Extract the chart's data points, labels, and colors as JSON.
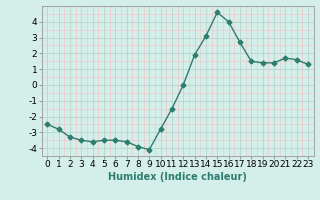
{
  "x": [
    0,
    1,
    2,
    3,
    4,
    5,
    6,
    7,
    8,
    9,
    10,
    11,
    12,
    13,
    14,
    15,
    16,
    17,
    18,
    19,
    20,
    21,
    22,
    23
  ],
  "y": [
    -2.5,
    -2.8,
    -3.3,
    -3.5,
    -3.6,
    -3.5,
    -3.5,
    -3.6,
    -3.9,
    -4.1,
    -2.8,
    -1.5,
    0.0,
    1.9,
    3.1,
    4.6,
    4.0,
    2.7,
    1.5,
    1.4,
    1.4,
    1.7,
    1.6,
    1.3
  ],
  "line_color": "#2e7d6e",
  "marker": "D",
  "marker_size": 2.5,
  "bg_color": "#d4efea",
  "grid_color_major": "#b8d4cf",
  "grid_color_minor": "#f0c8c8",
  "xlabel": "Humidex (Indice chaleur)",
  "xlim": [
    -0.5,
    23.5
  ],
  "ylim": [
    -4.5,
    5.0
  ],
  "yticks": [
    -4,
    -3,
    -2,
    -1,
    0,
    1,
    2,
    3,
    4
  ],
  "xticks": [
    0,
    1,
    2,
    3,
    4,
    5,
    6,
    7,
    8,
    9,
    10,
    11,
    12,
    13,
    14,
    15,
    16,
    17,
    18,
    19,
    20,
    21,
    22,
    23
  ],
  "xlabel_fontsize": 7.0,
  "tick_fontsize": 6.5,
  "line_width": 1.0
}
